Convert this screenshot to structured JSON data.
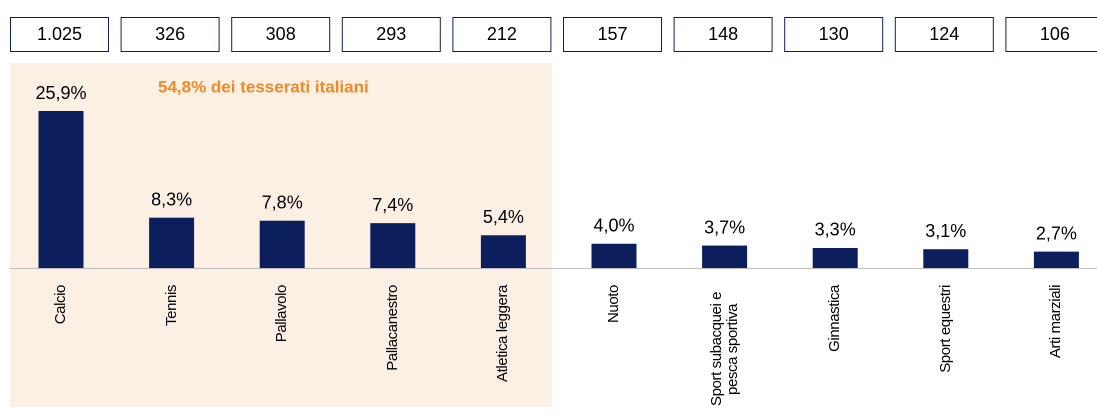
{
  "chart_data": {
    "type": "bar",
    "annotation": "54,8% dei tesserati italiani",
    "categories": [
      "Calcio",
      "Tennis",
      "Pallavolo",
      "Pallacanestro",
      "Atletica leggera",
      "Nuoto",
      "Sport subacquei e pesca sportiva",
      "Ginnastica",
      "Sport equestri",
      "Arti marziali"
    ],
    "values": [
      25.9,
      8.3,
      7.8,
      7.4,
      5.4,
      4.0,
      3.7,
      3.3,
      3.1,
      2.7
    ],
    "value_labels": [
      "25,9%",
      "8,3%",
      "7,8%",
      "7,4%",
      "5,4%",
      "4,0%",
      "3,7%",
      "3,3%",
      "3,1%",
      "2,7%"
    ],
    "totals": [
      1025,
      326,
      308,
      293,
      212,
      157,
      148,
      130,
      124,
      106
    ],
    "total_labels": [
      "1.025",
      "326",
      "308",
      "293",
      "212",
      "157",
      "148",
      "130",
      "124",
      "106"
    ],
    "color": "#0c1f5c",
    "highlight_color": "#fcefe4",
    "annotation_color": "#f08a24"
  }
}
